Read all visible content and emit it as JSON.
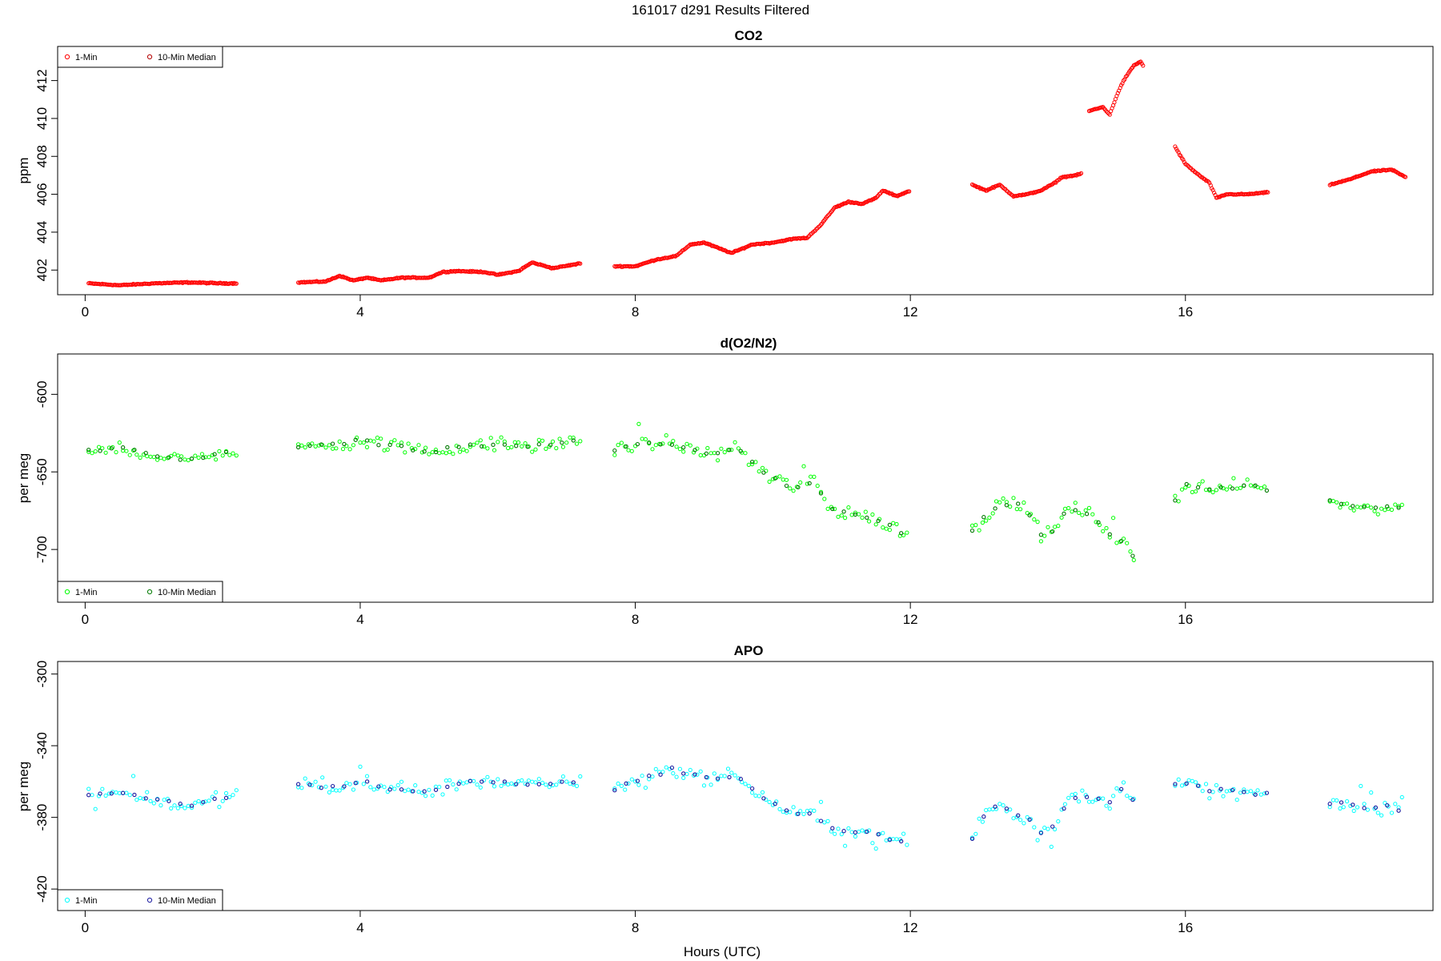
{
  "figure": {
    "title": "161017   d291   Results Filtered",
    "xlabel": "Hours (UTC)"
  },
  "legend_labels": {
    "one_min": "1-Min",
    "median": "10-Min Median"
  },
  "chart_data": [
    {
      "type": "scatter",
      "title": "CO2",
      "ylabel": "ppm",
      "xlim": [
        -0.4,
        19.6
      ],
      "ylim": [
        400.7,
        413.8
      ],
      "xticks": [
        0,
        4,
        8,
        12,
        16
      ],
      "yticks": [
        402,
        404,
        406,
        408,
        410,
        412
      ],
      "legend_position": "top-left",
      "colors": {
        "one_min": "#ff0000",
        "median": "#b40000"
      },
      "one_min_range_summary": "continuous 1-min record, approx values listed in segments",
      "segments": [
        {
          "x": [
            0.05,
            0.5,
            1.0,
            1.5,
            2.0,
            2.2
          ],
          "y": [
            401.3,
            401.2,
            401.3,
            401.35,
            401.3,
            401.3
          ]
        },
        {
          "x": [
            3.1,
            3.5,
            3.7,
            3.9,
            4.1,
            4.3,
            4.6,
            5.0,
            5.2,
            5.4,
            5.8,
            6.0,
            6.3,
            6.5,
            6.8,
            7.2
          ],
          "y": [
            401.35,
            401.4,
            401.7,
            401.45,
            401.6,
            401.45,
            401.6,
            401.6,
            401.9,
            401.95,
            401.9,
            401.75,
            401.95,
            402.4,
            402.1,
            402.35
          ]
        },
        {
          "x": [
            7.7,
            8.0,
            8.3,
            8.6,
            8.8,
            9.0,
            9.4,
            9.7,
            10.0,
            10.3,
            10.5,
            10.7,
            10.9,
            11.1,
            11.3,
            11.5,
            11.6,
            11.8,
            12.0
          ],
          "y": [
            402.2,
            402.2,
            402.55,
            402.75,
            403.35,
            403.45,
            402.9,
            403.35,
            403.45,
            403.65,
            403.7,
            404.4,
            405.3,
            405.6,
            405.5,
            405.8,
            406.2,
            405.9,
            406.2
          ]
        },
        {
          "x": [
            12.9,
            13.1,
            13.3,
            13.5,
            13.7,
            13.9,
            14.1,
            14.2,
            14.4,
            14.5
          ],
          "y": [
            406.5,
            406.2,
            406.5,
            405.9,
            406.0,
            406.2,
            406.6,
            406.9,
            407.0,
            407.1
          ]
        },
        {
          "x": [
            14.6,
            14.8,
            14.9,
            15.0,
            15.1,
            15.25,
            15.35,
            15.4
          ],
          "y": [
            410.4,
            410.6,
            410.2,
            411.2,
            412.0,
            412.8,
            413.0,
            412.7
          ]
        },
        {
          "x": [
            15.85,
            16.0,
            16.2,
            16.35,
            16.45,
            16.6,
            16.9,
            17.2
          ],
          "y": [
            408.5,
            407.6,
            407.0,
            406.6,
            405.8,
            406.0,
            406.0,
            406.1
          ]
        },
        {
          "x": [
            18.1,
            18.4,
            18.7,
            19.0,
            19.2
          ],
          "y": [
            406.5,
            406.8,
            407.2,
            407.3,
            406.9
          ]
        }
      ],
      "x": [],
      "y": []
    },
    {
      "type": "scatter",
      "title": "d(O2/N2)",
      "ylabel": "per meg",
      "xlim": [
        -0.4,
        19.6
      ],
      "ylim": [
        -734,
        -574
      ],
      "xticks": [
        0,
        4,
        8,
        12,
        16
      ],
      "yticks": [
        -600,
        -650,
        -700
      ],
      "ytick_labels": [
        "-600",
        "-650",
        "-700"
      ],
      "legend_position": "bottom-left",
      "colors": {
        "one_min": "#00ff00",
        "median": "#007a00"
      },
      "segments": [
        {
          "x": [
            0.05,
            0.5,
            1.0,
            1.5,
            2.0,
            2.2
          ],
          "y": [
            -637,
            -634,
            -640,
            -643,
            -636,
            -638
          ]
        },
        {
          "x": [
            3.1,
            3.5,
            4.0,
            4.5,
            5.0,
            5.5,
            6.0,
            6.5,
            7.2
          ],
          "y": [
            -634,
            -632,
            -630,
            -633,
            -637,
            -634,
            -632,
            -634,
            -630
          ]
        },
        {
          "x": [
            7.7,
            8.0,
            8.5,
            9.0,
            9.5,
            9.8,
            10.0,
            10.3,
            10.6,
            10.8,
            11.0,
            11.3,
            11.6,
            12.0
          ],
          "y": [
            -636,
            -632,
            -632,
            -638,
            -635,
            -648,
            -654,
            -660,
            -655,
            -673,
            -675,
            -678,
            -683,
            -691
          ]
        },
        {
          "x": [
            12.9,
            13.1,
            13.3,
            13.5,
            13.7,
            13.9,
            14.1,
            14.3,
            14.5,
            14.7,
            14.9,
            15.1,
            15.3
          ],
          "y": [
            -688,
            -678,
            -672,
            -670,
            -675,
            -690,
            -688,
            -672,
            -675,
            -680,
            -690,
            -695,
            -710
          ]
        },
        {
          "x": [
            15.85,
            16.0,
            16.3,
            16.6,
            16.9,
            17.2
          ],
          "y": [
            -668,
            -658,
            -661,
            -660,
            -659,
            -661
          ]
        },
        {
          "x": [
            18.1,
            18.4,
            18.7,
            19.0,
            19.2
          ],
          "y": [
            -669,
            -671,
            -673,
            -673,
            -673
          ]
        }
      ],
      "x": [],
      "y": []
    },
    {
      "type": "scatter",
      "title": "APO",
      "ylabel": "per meg",
      "xlim": [
        -0.4,
        19.6
      ],
      "ylim": [
        -432,
        -293
      ],
      "xticks": [
        0,
        4,
        8,
        12,
        16
      ],
      "yticks": [
        -300,
        -340,
        -380,
        -420
      ],
      "ytick_labels": [
        "-300",
        "-340",
        "-380",
        "-420"
      ],
      "legend_position": "bottom-left",
      "colors": {
        "one_min": "#00ffff",
        "median": "#1a1aa0"
      },
      "segments": [
        {
          "x": [
            0.05,
            0.5,
            1.0,
            1.5,
            2.0,
            2.2
          ],
          "y": [
            -367,
            -366,
            -370,
            -374,
            -369,
            -368
          ]
        },
        {
          "x": [
            3.1,
            3.5,
            4.0,
            4.5,
            5.0,
            5.5,
            6.0,
            6.5,
            7.2
          ],
          "y": [
            -361,
            -364,
            -360,
            -364,
            -366,
            -360,
            -360,
            -362,
            -360
          ]
        },
        {
          "x": [
            7.7,
            8.0,
            8.5,
            9.0,
            9.5,
            9.8,
            10.0,
            10.3,
            10.6,
            10.8,
            11.0,
            11.3,
            11.6,
            12.0
          ],
          "y": [
            -364,
            -360,
            -353,
            -358,
            -357,
            -368,
            -372,
            -378,
            -378,
            -386,
            -387,
            -388,
            -391,
            -395
          ]
        },
        {
          "x": [
            12.9,
            13.1,
            13.3,
            13.5,
            13.7,
            13.9,
            14.1,
            14.3,
            14.5,
            14.7,
            14.9,
            15.1,
            15.3
          ],
          "y": [
            -391,
            -376,
            -372,
            -378,
            -380,
            -388,
            -385,
            -370,
            -368,
            -370,
            -372,
            -362,
            -375
          ]
        },
        {
          "x": [
            15.85,
            16.0,
            16.3,
            16.6,
            16.9,
            17.2
          ],
          "y": [
            -362,
            -360,
            -365,
            -366,
            -366,
            -367
          ]
        },
        {
          "x": [
            18.1,
            18.4,
            18.7,
            19.0,
            19.2
          ],
          "y": [
            -372,
            -373,
            -375,
            -374,
            -376
          ]
        }
      ],
      "x": [],
      "y": []
    }
  ]
}
